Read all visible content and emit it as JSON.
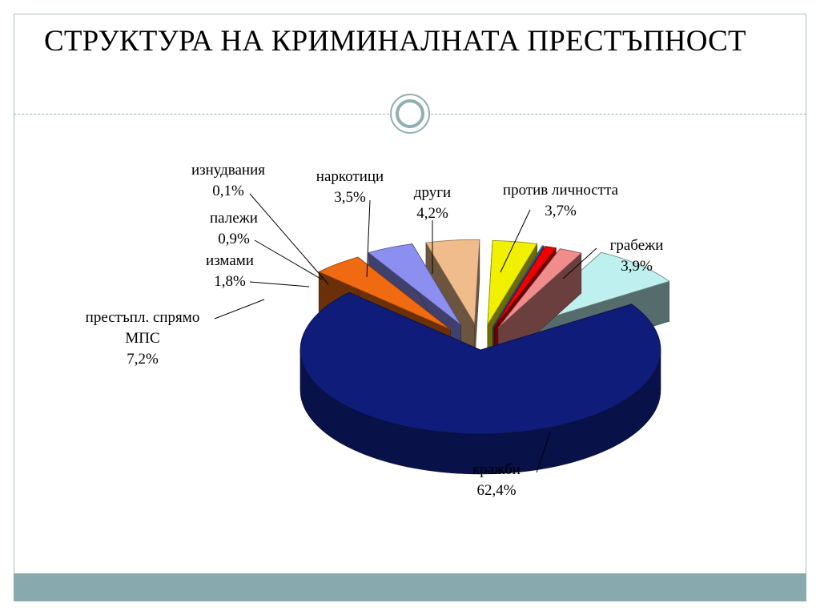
{
  "title": "СТРУКТУРА НА КРИМИНАЛНАТА ПРЕСТЪПНОСТ",
  "chart_data": {
    "type": "pie",
    "title": "",
    "slices": [
      {
        "label": "кражби",
        "value": 62.4,
        "value_label": "62,4%",
        "color": "#0f1c7a"
      },
      {
        "label": "грабежи",
        "value": 3.9,
        "value_label": "3,9%",
        "color": "#f06a12"
      },
      {
        "label": "против личността",
        "value": 3.7,
        "value_label": "3,7%",
        "color": "#8c8ff0"
      },
      {
        "label": "други",
        "value": 4.2,
        "value_label": "4,2%",
        "color": "#f0bc8c"
      },
      {
        "label": "наркотици",
        "value": 3.5,
        "value_label": "3,5%",
        "color": "#f0f000"
      },
      {
        "label": "изнудвания",
        "value": 0.1,
        "value_label": "0,1%",
        "color": "#3a8fd8"
      },
      {
        "label": "палежи",
        "value": 0.9,
        "value_label": "0,9%",
        "color": "#f00000"
      },
      {
        "label": "измами",
        "value": 1.8,
        "value_label": "1,8%",
        "color": "#f08c8c"
      },
      {
        "label": "престъпл. спрямо МПС",
        "label_lines": [
          "престъпл. спрямо",
          "МПС"
        ],
        "value": 7.2,
        "value_label": "7,2%",
        "color": "#bff0f0"
      }
    ],
    "style": "3d exploded pie",
    "legend": "none (leader-line labels)"
  }
}
